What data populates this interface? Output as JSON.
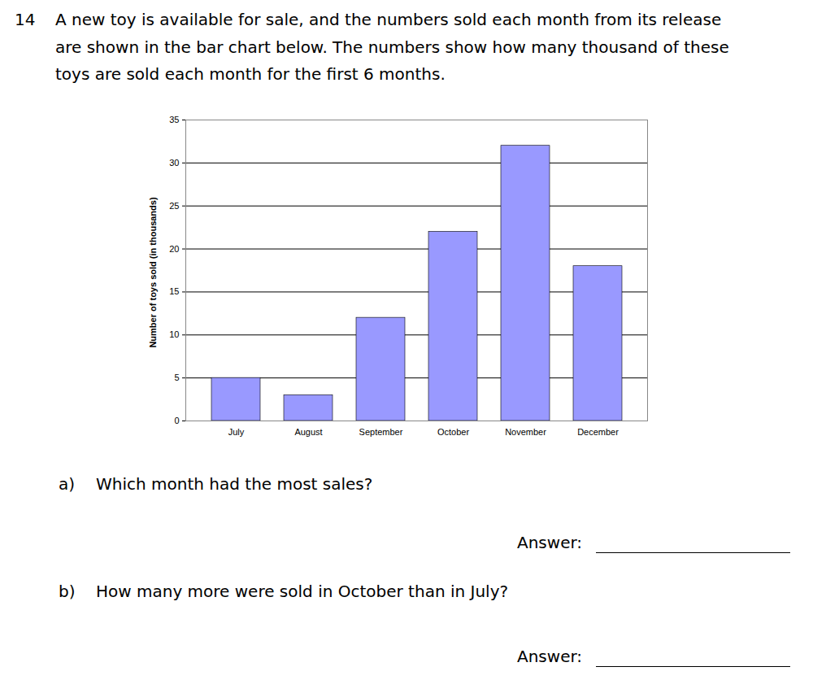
{
  "question": {
    "number": "14",
    "lines": [
      "A new toy is available for sale, and the numbers sold each month from its release",
      "are shown in the bar chart below. The numbers show how many thousand of these",
      "toys are sold each month for the first 6 months."
    ]
  },
  "chart_data": {
    "type": "bar",
    "y_label": "Number of toys sold (in thousands)",
    "categories": [
      "July",
      "August",
      "September",
      "October",
      "November",
      "December"
    ],
    "values": [
      5,
      3,
      12,
      22,
      32,
      18
    ],
    "color": "#9999ff",
    "ylim": [
      0,
      35
    ],
    "yticks": [
      0,
      5,
      10,
      15,
      20,
      25,
      30,
      35
    ],
    "grid": true
  },
  "parts": [
    {
      "label": "a)",
      "text": "Which month had the most sales?",
      "answer_label": "Answer:"
    },
    {
      "label": "b)",
      "text": "How many more were sold in October than in July?",
      "answer_label": "Answer:"
    }
  ]
}
